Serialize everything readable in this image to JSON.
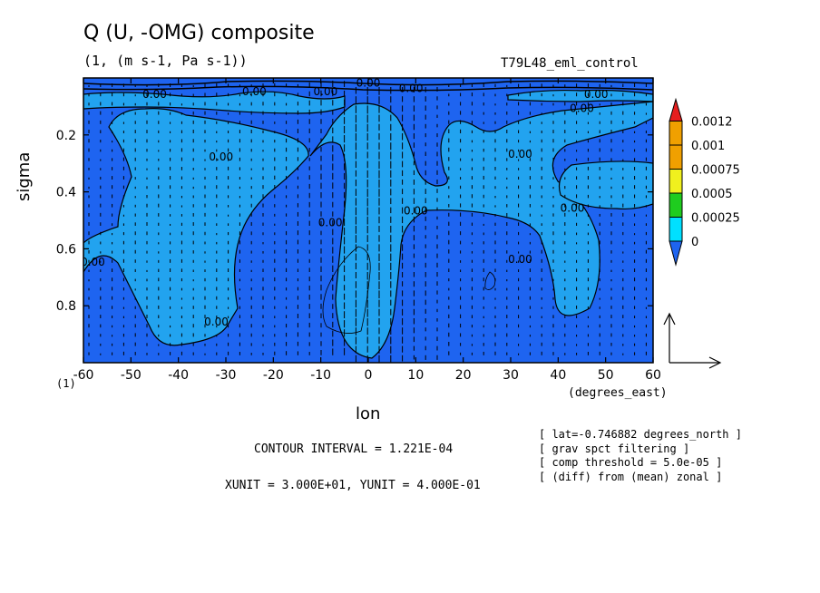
{
  "header": {
    "title": "Q (U, -OMG) composite",
    "units": "(1, (m s-1, Pa s-1))",
    "run": "T79L48_eml_control",
    "one": "(1)"
  },
  "footer": {
    "contour_interval": "CONTOUR INTERVAL = 1.221E-04",
    "xyunit": "XUNIT = 3.000E+01, YUNIT = 4.000E-01",
    "info": [
      "[ lat=-0.746882 degrees_north ]",
      "[ grav spct filtering ]",
      "[ comp threshold = 5.0e-05 ]",
      "[ (diff) from (mean) zonal ]"
    ]
  },
  "contour_label": "0.00",
  "colors": {
    "dark": "#1e64f0",
    "light": "#22a3ef",
    "colorbar": [
      "#1e64f0",
      "#00e0ff",
      "#1fcc1f",
      "#f0f01e",
      "#f0a000",
      "#e61e1e"
    ]
  },
  "chart_data": {
    "type": "heatmap",
    "title": "Q (U, -OMG) composite",
    "xlabel": "lon",
    "xlabel_units": "(degrees_east)",
    "ylabel": "sigma",
    "x_ticks": [
      -60,
      -50,
      -40,
      -30,
      -20,
      -10,
      0,
      10,
      20,
      30,
      40,
      50,
      60
    ],
    "y_ticks": [
      0.2,
      0.4,
      0.6,
      0.8
    ],
    "xlim": [
      -60,
      60
    ],
    "ylim": [
      0.0,
      1.0
    ],
    "y_reversed": true,
    "colorbar_levels": [
      "0",
      "0.00025",
      "0.0005",
      "0.00075",
      "0.001",
      "0.0012"
    ],
    "contour_labels": [
      {
        "x": -45,
        "y": 0.07,
        "text": "0.00"
      },
      {
        "x": -24,
        "y": 0.06,
        "text": "0.00"
      },
      {
        "x": -9,
        "y": 0.06,
        "text": "0.00"
      },
      {
        "x": 0,
        "y": 0.03,
        "text": "0.00"
      },
      {
        "x": 9,
        "y": 0.05,
        "text": "0.00"
      },
      {
        "x": 48,
        "y": 0.07,
        "text": "0.00"
      },
      {
        "x": 45,
        "y": 0.12,
        "text": "0.00"
      },
      {
        "x": 32,
        "y": 0.28,
        "text": "0.00"
      },
      {
        "x": -31,
        "y": 0.29,
        "text": "0.00"
      },
      {
        "x": 10,
        "y": 0.48,
        "text": "0.00"
      },
      {
        "x": -8,
        "y": 0.52,
        "text": "0.00"
      },
      {
        "x": 43,
        "y": 0.47,
        "text": "0.00"
      },
      {
        "x": -58,
        "y": 0.66,
        "text": "0.00"
      },
      {
        "x": 32,
        "y": 0.65,
        "text": "0.00"
      },
      {
        "x": -32,
        "y": 0.87,
        "text": "0.00"
      }
    ],
    "vector_reference": {
      "xunit": 30.0,
      "yunit": 0.4
    }
  }
}
